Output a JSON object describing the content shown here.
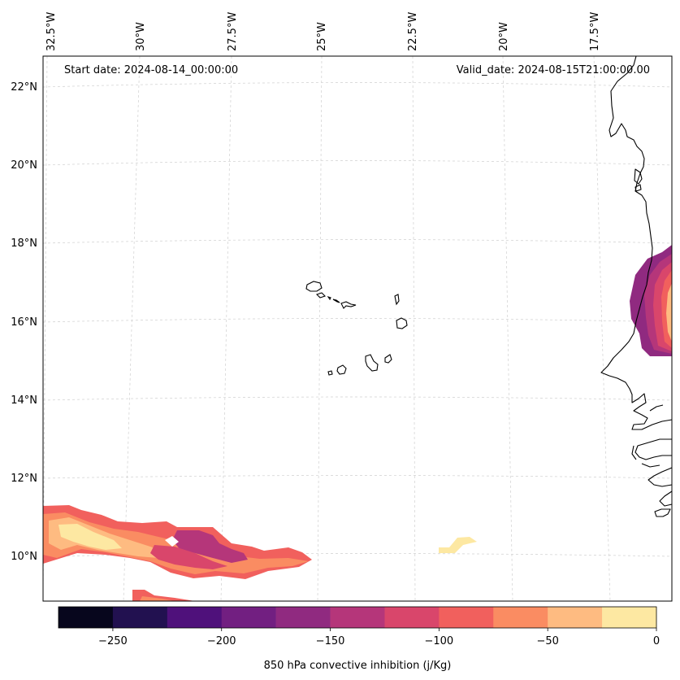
{
  "map": {
    "start_label": "Start date: 2024-08-14_00:00:00",
    "valid_label": "Valid_date: 2024-08-15T21:00:00.00",
    "lon_labels": [
      "32.5°W",
      "30°W",
      "27.5°W",
      "25°W",
      "22.5°W",
      "20°W",
      "17.5°W"
    ],
    "lat_labels": [
      "22°N",
      "20°N",
      "18°N",
      "16°N",
      "14°N",
      "12°N",
      "10°N"
    ],
    "region": "Cabo Verde Islands and West African coast"
  },
  "colorbar": {
    "label": "850 hPa convective inhibition (j/Kg)",
    "ticks": [
      "−250",
      "−200",
      "−150",
      "−100",
      "−50",
      "0"
    ],
    "levels": [
      -275,
      -250,
      -225,
      -200,
      -175,
      -150,
      -125,
      -100,
      -75,
      -50,
      -25,
      0
    ],
    "colors": [
      "#07061d",
      "#221150",
      "#4f117b",
      "#721f81",
      "#902a80",
      "#b5367a",
      "#d9466b",
      "#f1605d",
      "#fa8c62",
      "#febb81",
      "#fde8a2"
    ]
  }
}
